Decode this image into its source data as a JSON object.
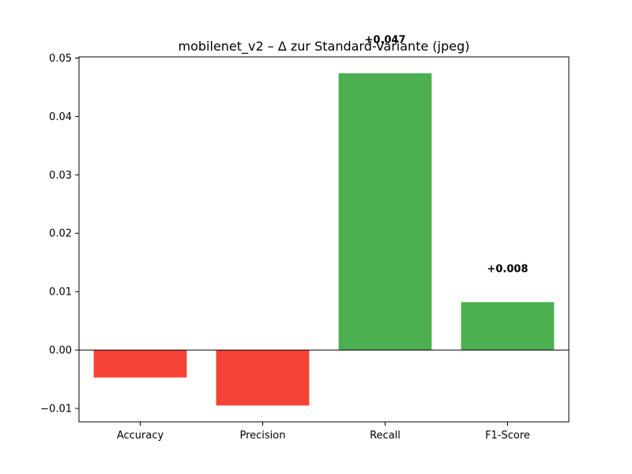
{
  "chart_data": {
    "type": "bar",
    "title": "mobilenet_v2 – Δ zur Standard-Variante (jpeg)",
    "xlabel": "",
    "ylabel": "",
    "categories": [
      "Accuracy",
      "Precision",
      "Recall",
      "F1-Score"
    ],
    "values": [
      -0.0047,
      -0.0095,
      0.0474,
      0.0082
    ],
    "value_labels": [
      "",
      "",
      "+0.047",
      "+0.008"
    ],
    "ylim": [
      -0.0123,
      0.0502
    ],
    "yticks": [
      -0.01,
      0.0,
      0.01,
      0.02,
      0.03,
      0.04,
      0.05
    ],
    "ytick_labels": [
      "−0.01",
      "0.00",
      "0.01",
      "0.02",
      "0.03",
      "0.04",
      "0.05"
    ],
    "grid": false,
    "colors": {
      "positive": "#4caf50",
      "negative": "#f44336",
      "axis": "#000000"
    }
  }
}
